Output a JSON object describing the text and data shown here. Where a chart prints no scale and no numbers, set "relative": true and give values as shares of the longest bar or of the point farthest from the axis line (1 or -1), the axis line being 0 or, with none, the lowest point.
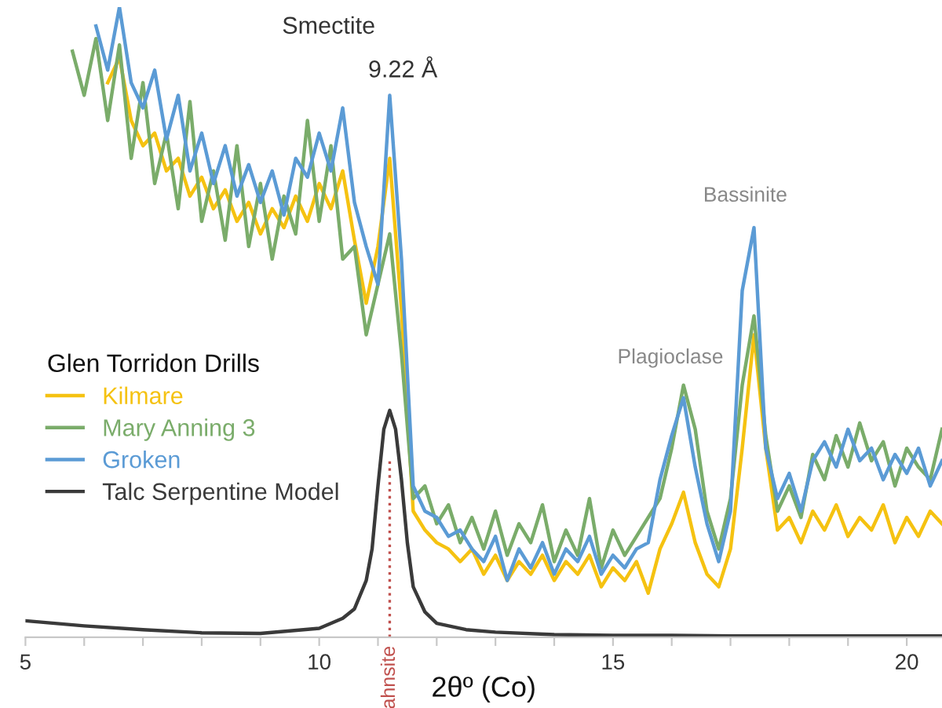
{
  "chart_data": {
    "type": "line",
    "relative": true,
    "xlabel": "2θº (Co)",
    "legend_title": "Glen Torridon Drills",
    "legend": "left",
    "grid": false,
    "xlim": [
      5,
      20.6
    ],
    "xticks": [
      5,
      {
        "value": 6,
        "label": null
      },
      {
        "value": 7,
        "label": null
      },
      {
        "value": 8,
        "label": null
      },
      {
        "value": 9,
        "label": null
      },
      10,
      {
        "value": 11,
        "label": null
      },
      {
        "value": 12,
        "label": null
      },
      {
        "value": 13,
        "label": null
      },
      {
        "value": 14,
        "label": null
      },
      15,
      {
        "value": 16,
        "label": null
      },
      {
        "value": 17,
        "label": null
      },
      {
        "value": 18,
        "label": null
      },
      {
        "value": 19,
        "label": null
      },
      20
    ],
    "x": [
      5.8,
      6.0,
      6.2,
      6.4,
      6.6,
      6.8,
      7.0,
      7.2,
      7.4,
      7.6,
      7.8,
      8.0,
      8.2,
      8.4,
      8.6,
      8.8,
      9.0,
      9.2,
      9.4,
      9.6,
      9.8,
      10.0,
      10.2,
      10.4,
      10.6,
      10.8,
      11.0,
      11.2,
      11.4,
      11.6,
      11.8,
      12.0,
      12.2,
      12.4,
      12.6,
      12.8,
      13.0,
      13.2,
      13.4,
      13.6,
      13.8,
      14.0,
      14.2,
      14.4,
      14.6,
      14.8,
      15.0,
      15.2,
      15.4,
      15.6,
      15.8,
      16.0,
      16.2,
      16.4,
      16.6,
      16.8,
      17.0,
      17.2,
      17.4,
      17.6,
      17.8,
      18.0,
      18.2,
      18.4,
      18.6,
      18.8,
      19.0,
      19.2,
      19.4,
      19.6,
      19.8,
      20.0,
      20.2,
      20.4,
      20.6
    ],
    "series": [
      {
        "name": "Kilmare",
        "color": "#f5c211",
        "values": [
          null,
          null,
          null,
          0.88,
          0.92,
          0.82,
          0.78,
          0.8,
          0.74,
          0.76,
          0.7,
          0.73,
          0.68,
          0.71,
          0.66,
          0.69,
          0.64,
          0.68,
          0.65,
          0.7,
          0.66,
          0.72,
          0.68,
          0.74,
          0.63,
          0.53,
          0.62,
          0.76,
          0.52,
          0.2,
          0.17,
          0.15,
          0.14,
          0.12,
          0.14,
          0.1,
          0.13,
          0.09,
          0.12,
          0.1,
          0.13,
          0.09,
          0.12,
          0.1,
          0.13,
          0.08,
          0.11,
          0.09,
          0.12,
          0.07,
          0.14,
          0.18,
          0.23,
          0.15,
          0.1,
          0.08,
          0.14,
          0.3,
          0.48,
          0.3,
          0.17,
          0.19,
          0.15,
          0.2,
          0.17,
          0.21,
          0.16,
          0.19,
          0.17,
          0.21,
          0.15,
          0.19,
          0.16,
          0.2,
          0.18
        ]
      },
      {
        "name": "Mary Anning 3",
        "color": "#7aac6a",
        "values": [
          0.93,
          0.86,
          0.95,
          0.82,
          0.94,
          0.76,
          0.88,
          0.72,
          0.8,
          0.68,
          0.85,
          0.66,
          0.74,
          0.63,
          0.78,
          0.62,
          0.72,
          0.6,
          0.7,
          0.64,
          0.82,
          0.66,
          0.78,
          0.6,
          0.62,
          0.48,
          0.56,
          0.64,
          0.45,
          0.22,
          0.24,
          0.18,
          0.21,
          0.15,
          0.19,
          0.14,
          0.2,
          0.13,
          0.18,
          0.15,
          0.21,
          0.12,
          0.17,
          0.13,
          0.22,
          0.11,
          0.17,
          0.13,
          0.16,
          0.19,
          0.22,
          0.3,
          0.4,
          0.33,
          0.2,
          0.14,
          0.22,
          0.4,
          0.51,
          0.32,
          0.2,
          0.24,
          0.19,
          0.29,
          0.25,
          0.32,
          0.27,
          0.34,
          0.28,
          0.31,
          0.24,
          0.3,
          0.27,
          0.25,
          0.33
        ]
      },
      {
        "name": "Groken",
        "color": "#5b9bd5",
        "values": [
          null,
          null,
          0.97,
          0.9,
          1.0,
          0.88,
          0.84,
          0.9,
          0.79,
          0.86,
          0.74,
          0.8,
          0.72,
          0.78,
          0.7,
          0.75,
          0.69,
          0.74,
          0.67,
          0.76,
          0.73,
          0.8,
          0.74,
          0.84,
          0.69,
          0.62,
          0.56,
          0.86,
          0.6,
          0.24,
          0.2,
          0.19,
          0.16,
          0.17,
          0.14,
          0.12,
          0.16,
          0.09,
          0.14,
          0.11,
          0.15,
          0.1,
          0.14,
          0.12,
          0.16,
          0.1,
          0.13,
          0.11,
          0.14,
          0.15,
          0.25,
          0.32,
          0.38,
          0.27,
          0.18,
          0.12,
          0.2,
          0.55,
          0.65,
          0.3,
          0.22,
          0.26,
          0.2,
          0.28,
          0.31,
          0.27,
          0.33,
          0.28,
          0.3,
          0.25,
          0.29,
          0.26,
          0.3,
          0.24,
          0.28
        ]
      },
      {
        "name": "Talc Serpentine Model",
        "color": "#3a3a3a",
        "x": [
          5,
          6,
          7,
          8,
          9,
          10,
          10.4,
          10.6,
          10.8,
          10.9,
          11.0,
          11.1,
          11.2,
          11.3,
          11.4,
          11.5,
          11.6,
          11.8,
          12.0,
          12.5,
          13,
          14,
          15,
          16,
          17,
          18,
          19,
          20,
          20.6
        ],
        "values": [
          0.026,
          0.018,
          0.012,
          0.007,
          0.006,
          0.014,
          0.03,
          0.045,
          0.09,
          0.14,
          0.24,
          0.33,
          0.36,
          0.33,
          0.25,
          0.15,
          0.08,
          0.04,
          0.022,
          0.012,
          0.008,
          0.004,
          0.003,
          0.003,
          0.002,
          0.002,
          0.002,
          0.002,
          0.002
        ]
      }
    ],
    "ref_lines": [
      {
        "axis": "x",
        "value": 11.2,
        "label": "ahnsite",
        "color": "#c0504d",
        "line_style": "dotted"
      }
    ],
    "annotations": [
      {
        "text": "Smectite",
        "x": 11.2,
        "y": 0.86
      },
      {
        "text": "9.22 Å",
        "x": 11.2,
        "y": 0.86
      },
      {
        "text": "Plagioclase",
        "x": 16.2,
        "y": 0.4
      },
      {
        "text": "Bassinite",
        "x": 17.4,
        "y": 0.65
      }
    ]
  }
}
